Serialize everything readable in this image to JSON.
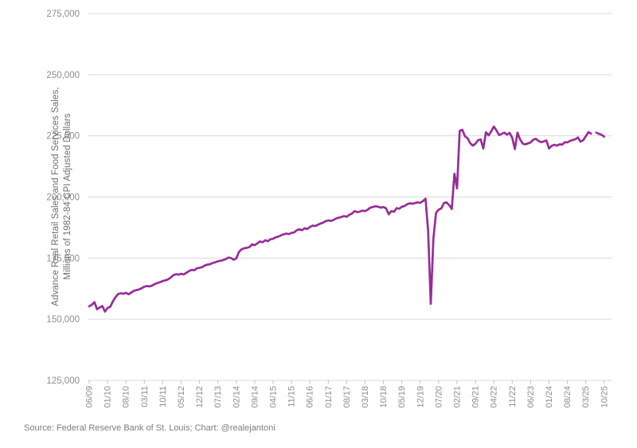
{
  "chart_data": {
    "type": "line",
    "title": "",
    "series_name": "Advance Real Retail and Food Services Sales",
    "ylabel_line1": "Advance Real Retail Sales and Food Services Sales,",
    "ylabel_line2": "Millions of 1982-84 CPI Adjusted Dollars",
    "source": "Source: Federal Reserve Bank of St. Louis; Chart: @realejantoni",
    "frequency": "monthly",
    "start_month": "2009-06",
    "end_month": "2025-10",
    "x_tick_every_months": 7,
    "x_tick_labels": [
      "06/09",
      "01/10",
      "08/10",
      "03/11",
      "10/11",
      "05/12",
      "12/12",
      "07/13",
      "02/14",
      "09/14",
      "04/15",
      "11/15",
      "06/16",
      "01/17",
      "08/17",
      "03/18",
      "10/18",
      "05/19",
      "12/19",
      "07/20",
      "02/21",
      "09/21",
      "04/22",
      "11/22",
      "06/23",
      "01/24",
      "08/24",
      "03/25",
      "10/25"
    ],
    "y_ticks": [
      275000,
      250000,
      225000,
      200000,
      175000,
      150000,
      125000
    ],
    "y_tick_labels": [
      "275,000",
      "250,000",
      "225,000",
      "200,000",
      "175,000",
      "150,000",
      "125,000"
    ],
    "ylim": [
      125000,
      275000
    ],
    "grid": true,
    "legend": "none",
    "line_color": "#982d97",
    "grid_color": "#d9d9d9",
    "tick_mark_color": "#c0c0c0",
    "tick_label_color": "#8c8c8c",
    "axis_title_color": "#6e6e6e",
    "source_color": "#7d7d7d",
    "values": [
      155300,
      155900,
      157000,
      154100,
      154800,
      155400,
      153100,
      154600,
      155100,
      157200,
      159000,
      160300,
      160600,
      160400,
      160800,
      160200,
      160900,
      161600,
      161900,
      162200,
      162700,
      163300,
      163600,
      163400,
      163800,
      164400,
      164800,
      165200,
      165600,
      165900,
      166300,
      167000,
      168000,
      168400,
      168200,
      168600,
      168300,
      169000,
      169700,
      170200,
      170000,
      170800,
      171000,
      171300,
      172000,
      172300,
      172500,
      173000,
      173300,
      173700,
      173900,
      174200,
      174600,
      175200,
      175000,
      174300,
      174900,
      177500,
      178600,
      179000,
      179200,
      179500,
      180600,
      180300,
      181000,
      181800,
      181500,
      182300,
      181900,
      182700,
      182900,
      183500,
      183800,
      184300,
      184700,
      185000,
      184800,
      185300,
      185500,
      186400,
      186800,
      186400,
      187200,
      186900,
      187700,
      188300,
      188100,
      188600,
      189100,
      189500,
      190100,
      190400,
      190200,
      190600,
      191200,
      191500,
      191800,
      192200,
      191900,
      192700,
      193200,
      194200,
      193800,
      194000,
      194400,
      194200,
      194800,
      195600,
      195900,
      196200,
      196000,
      195600,
      195900,
      195300,
      192900,
      194200,
      193900,
      195400,
      195200,
      196000,
      196300,
      197000,
      197400,
      197200,
      197500,
      197800,
      197600,
      198300,
      199300,
      186000,
      156300,
      183000,
      193500,
      194800,
      195300,
      197500,
      197800,
      196600,
      195100,
      209500,
      203500,
      227000,
      227500,
      224800,
      224000,
      222000,
      221000,
      221800,
      223200,
      223500,
      219800,
      226500,
      225200,
      226800,
      228800,
      227200,
      225300,
      225800,
      226300,
      225500,
      226200,
      224200,
      219600,
      226300,
      223500,
      221800,
      221500,
      221900,
      222300,
      223400,
      223800,
      222900,
      222400,
      222700,
      223100,
      219800,
      220900,
      221300,
      221000,
      221500,
      221400,
      222400,
      222300,
      222900,
      223300,
      223600,
      224300,
      222600,
      223200,
      224800,
      226500,
      225900,
      null,
      226300,
      225800,
      225400,
      224700
    ]
  }
}
